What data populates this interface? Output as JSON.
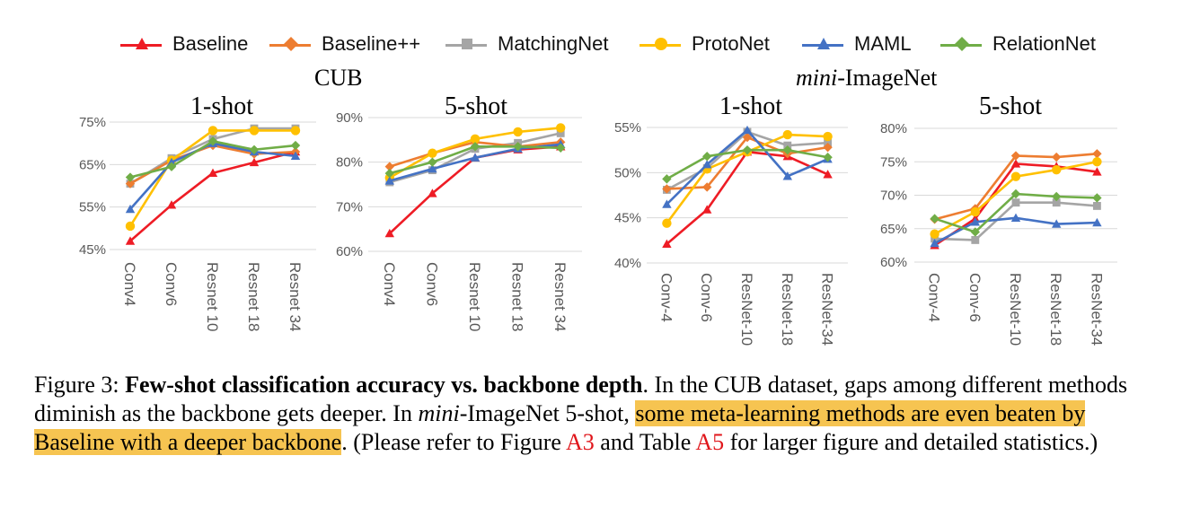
{
  "legend": [
    {
      "name": "Baseline",
      "color": "#ee1c25",
      "marker": "triangle"
    },
    {
      "name": "Baseline++",
      "color": "#ed7d31",
      "marker": "diamond"
    },
    {
      "name": "MatchingNet",
      "color": "#a5a5a5",
      "marker": "square"
    },
    {
      "name": "ProtoNet",
      "color": "#ffc000",
      "marker": "circle"
    },
    {
      "name": "MAML",
      "color": "#4472c4",
      "marker": "triangle"
    },
    {
      "name": "RelationNet",
      "color": "#70ad47",
      "marker": "diamond"
    }
  ],
  "groups": {
    "cub": {
      "title": "CUB"
    },
    "mini": {
      "title_italic": "mini",
      "title_rest": "-ImageNet"
    }
  },
  "chart_data": [
    {
      "type": "line",
      "dataset": "CUB",
      "title": "1-shot",
      "categories": [
        "Conv4",
        "Conv6",
        "Resnet 10",
        "Resnet 18",
        "Resnet 34"
      ],
      "yticks": [
        "45%",
        "55%",
        "65%",
        "75%"
      ],
      "ylim": [
        45,
        75
      ],
      "series": [
        {
          "name": "Baseline",
          "values": [
            47,
            55.5,
            63,
            65.5,
            68
          ]
        },
        {
          "name": "Baseline++",
          "values": [
            60.5,
            66,
            69.5,
            67.5,
            68
          ]
        },
        {
          "name": "MatchingNet",
          "values": [
            60.5,
            66.5,
            71,
            73.5,
            73.5
          ]
        },
        {
          "name": "ProtoNet",
          "values": [
            50.5,
            66,
            73,
            73,
            73
          ]
        },
        {
          "name": "MAML",
          "values": [
            54.5,
            65.5,
            70,
            68,
            67
          ]
        },
        {
          "name": "RelationNet",
          "values": [
            62,
            64.5,
            70.5,
            68.5,
            69.5
          ]
        }
      ]
    },
    {
      "type": "line",
      "dataset": "CUB",
      "title": "5-shot",
      "categories": [
        "Conv4",
        "Conv6",
        "Resnet 10",
        "Resnet 18",
        "Resnet 34"
      ],
      "yticks": [
        "60%",
        "70%",
        "80%",
        "90%"
      ],
      "ylim": [
        60,
        90
      ],
      "series": [
        {
          "name": "Baseline",
          "values": [
            64,
            73,
            81,
            82.8,
            83.5
          ]
        },
        {
          "name": "Baseline++",
          "values": [
            79,
            82,
            84.5,
            83.5,
            84.5
          ]
        },
        {
          "name": "MatchingNet",
          "values": [
            75.5,
            78.2,
            83,
            84.3,
            86.5
          ]
        },
        {
          "name": "ProtoNet",
          "values": [
            76.5,
            82,
            85.2,
            86.8,
            87.7
          ]
        },
        {
          "name": "MAML",
          "values": [
            75.8,
            78.5,
            81,
            83,
            84
          ]
        },
        {
          "name": "RelationNet",
          "values": [
            77.5,
            80,
            83.5,
            83.5,
            83.2
          ]
        }
      ]
    },
    {
      "type": "line",
      "dataset": "mini-ImageNet",
      "title": "1-shot",
      "categories": [
        "Conv-4",
        "Conv-6",
        "ResNet-10",
        "ResNet-18",
        "ResNet-34"
      ],
      "yticks": [
        "40%",
        "45%",
        "50%",
        "55%"
      ],
      "ylim": [
        40,
        55
      ],
      "series": [
        {
          "name": "Baseline",
          "values": [
            42.1,
            45.9,
            52.3,
            51.8,
            49.8
          ]
        },
        {
          "name": "Baseline++",
          "values": [
            48.2,
            48.4,
            53.9,
            52.1,
            52.8
          ]
        },
        {
          "name": "MatchingNet",
          "values": [
            48.1,
            50.5,
            54.5,
            53,
            53.3
          ]
        },
        {
          "name": "ProtoNet",
          "values": [
            44.4,
            50.4,
            52.3,
            54.2,
            54
          ]
        },
        {
          "name": "MAML",
          "values": [
            46.5,
            50.9,
            54.7,
            49.6,
            51.5
          ]
        },
        {
          "name": "RelationNet",
          "values": [
            49.3,
            51.8,
            52.5,
            52.5,
            51.7
          ]
        }
      ]
    },
    {
      "type": "line",
      "dataset": "mini-ImageNet",
      "title": "5-shot",
      "categories": [
        "Conv-4",
        "Conv-6",
        "ResNet-10",
        "ResNet-18",
        "ResNet-34"
      ],
      "yticks": [
        "60%",
        "65%",
        "70%",
        "75%",
        "80%"
      ],
      "ylim": [
        60,
        80
      ],
      "series": [
        {
          "name": "Baseline",
          "values": [
            62.5,
            66.5,
            74.7,
            74.3,
            73.5
          ]
        },
        {
          "name": "Baseline++",
          "values": [
            66.4,
            68,
            75.9,
            75.7,
            76.2
          ]
        },
        {
          "name": "MatchingNet",
          "values": [
            63.5,
            63.3,
            68.9,
            68.9,
            68.4
          ]
        },
        {
          "name": "ProtoNet",
          "values": [
            64.2,
            67.5,
            72.8,
            73.8,
            75
          ]
        },
        {
          "name": "MAML",
          "values": [
            62.8,
            66,
            66.6,
            65.7,
            65.9
          ]
        },
        {
          "name": "RelationNet",
          "values": [
            66.5,
            64.5,
            70.2,
            69.8,
            69.6
          ]
        }
      ]
    }
  ],
  "caption": {
    "prefix": "Figure 3: ",
    "bold": "Few-shot classification accuracy vs. backbone depth",
    "text1": ". In the CUB dataset, gaps among different methods diminish as the backbone gets deeper. In ",
    "italic": "mini",
    "text2": "-ImageNet 5-shot, ",
    "highlight": "some meta-learning methods are even beaten by Baseline with a deeper backbone",
    "text3": ". (Please refer to Figure ",
    "ref1": "A3",
    "text4": " and Table ",
    "ref2": "A5",
    "text5": " for larger figure and detailed statistics.)"
  }
}
